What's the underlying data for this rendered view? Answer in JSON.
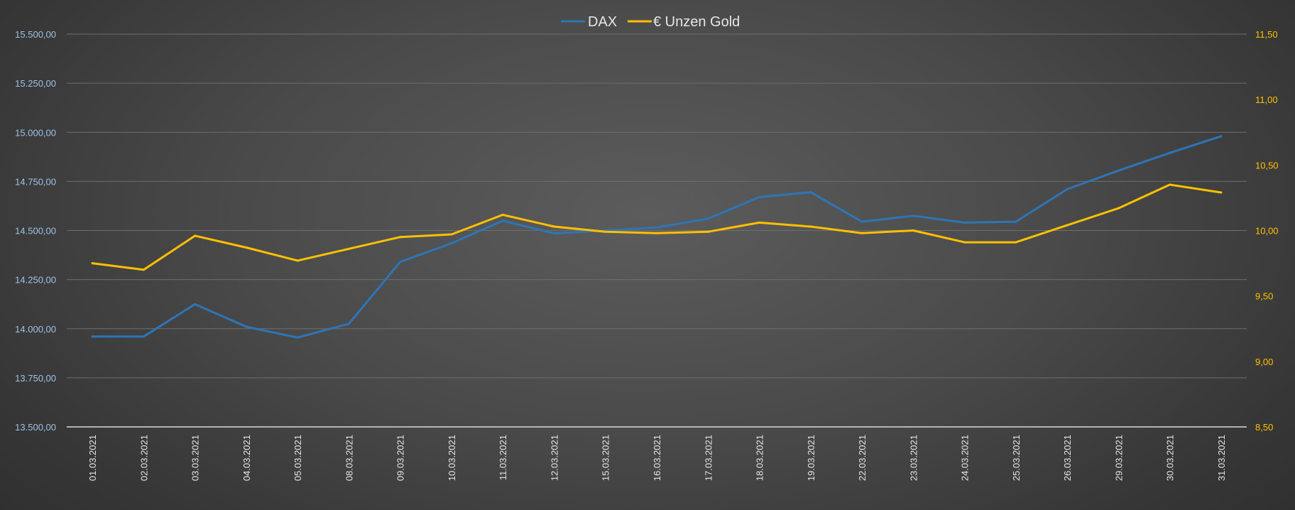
{
  "chart_data": {
    "type": "line",
    "title": "",
    "x": [
      "01.03.2021",
      "02.03.2021",
      "03.03.2021",
      "04.03.2021",
      "05.03.2021",
      "08.03.2021",
      "09.03.2021",
      "10.03.2021",
      "11.03.2021",
      "12.03.2021",
      "15.03.2021",
      "16.03.2021",
      "17.03.2021",
      "18.03.2021",
      "19.03.2021",
      "22.03.2021",
      "23.03.2021",
      "24.03.2021",
      "25.03.2021",
      "26.03.2021",
      "29.03.2021",
      "30.03.2021",
      "31.03.2021"
    ],
    "series": [
      {
        "name": "DAX",
        "axis": "left",
        "color": "#2e75b6",
        "values": [
          13960,
          13960,
          14125,
          14010,
          13955,
          14025,
          14340,
          14435,
          14550,
          14485,
          14500,
          14515,
          14560,
          14670,
          14695,
          14545,
          14575,
          14540,
          14545,
          14710,
          14805,
          14895,
          14980
        ]
      },
      {
        "name": "€ Unzen Gold",
        "axis": "right",
        "color": "#ffc000",
        "values": [
          9.75,
          9.7,
          9.96,
          9.87,
          9.77,
          9.86,
          9.95,
          9.97,
          10.12,
          10.03,
          9.99,
          9.98,
          9.99,
          10.06,
          10.03,
          9.98,
          10.0,
          9.91,
          9.91,
          10.04,
          10.17,
          10.35,
          10.29
        ]
      }
    ],
    "y_left": {
      "min": 13500,
      "max": 15500,
      "step": 250,
      "tick_labels": [
        "13.500,00",
        "13.750,00",
        "14.000,00",
        "14.250,00",
        "14.500,00",
        "14.750,00",
        "15.000,00",
        "15.250,00",
        "15.500,00"
      ],
      "label_color": "#9dc3e6"
    },
    "y_right": {
      "min": 8.5,
      "max": 11.5,
      "step": 0.5,
      "tick_labels": [
        "8,50",
        "9,00",
        "9,50",
        "10,00",
        "10,50",
        "11,00",
        "11,50"
      ],
      "label_color": "#ffc000"
    },
    "grid": true,
    "legend_position": "top-center"
  }
}
